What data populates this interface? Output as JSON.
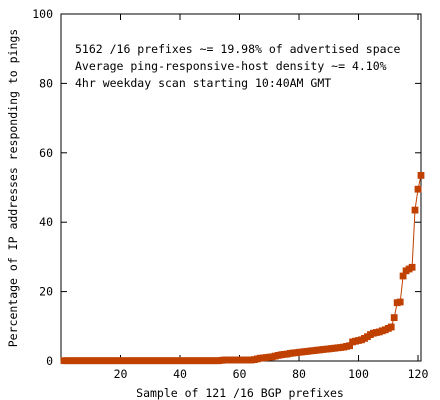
{
  "chart_data": {
    "type": "line",
    "xlabel": "Sample of 121 /16 BGP prefixes",
    "ylabel": "Percentage of IP addresses responding to pings",
    "xlim": [
      0,
      121
    ],
    "ylim": [
      0,
      100
    ],
    "x_ticks": [
      20,
      40,
      60,
      80,
      100,
      120
    ],
    "y_ticks": [
      0,
      20,
      40,
      60,
      80,
      100
    ],
    "grid": false,
    "annotations": [
      "5162 /16 prefixes ~= 19.98% of advertised space",
      "Average ping-responsive-host density ~= 4.10%",
      "4hr weekday scan starting 10:40AM GMT"
    ],
    "series": [
      {
        "color": "#c04000",
        "marker": "square",
        "values": [
          0.1,
          0.1,
          0.1,
          0.1,
          0.1,
          0.1,
          0.1,
          0.1,
          0.1,
          0.1,
          0.1,
          0.1,
          0.1,
          0.1,
          0.1,
          0.1,
          0.1,
          0.1,
          0.1,
          0.1,
          0.1,
          0.1,
          0.1,
          0.1,
          0.1,
          0.1,
          0.1,
          0.1,
          0.1,
          0.1,
          0.1,
          0.1,
          0.1,
          0.1,
          0.1,
          0.1,
          0.1,
          0.1,
          0.1,
          0.1,
          0.1,
          0.1,
          0.1,
          0.1,
          0.1,
          0.1,
          0.1,
          0.1,
          0.1,
          0.1,
          0.1,
          0.1,
          0.1,
          0.2,
          0.3,
          0.3,
          0.3,
          0.3,
          0.3,
          0.3,
          0.3,
          0.3,
          0.3,
          0.3,
          0.4,
          0.6,
          0.8,
          0.9,
          1.0,
          1.1,
          1.2,
          1.4,
          1.6,
          1.8,
          1.9,
          2.0,
          2.2,
          2.3,
          2.4,
          2.5,
          2.6,
          2.7,
          2.8,
          2.9,
          3.0,
          3.1,
          3.2,
          3.3,
          3.4,
          3.5,
          3.6,
          3.7,
          3.8,
          3.9,
          4.0,
          4.2,
          4.4,
          5.5,
          5.7,
          5.9,
          6.1,
          6.5,
          7.0,
          7.6,
          8.0,
          8.2,
          8.4,
          8.7,
          9.0,
          9.4,
          9.8,
          12.5,
          16.8,
          17.0,
          24.5,
          26.0,
          26.5,
          27.0,
          43.5,
          49.5,
          53.5
        ]
      }
    ]
  }
}
